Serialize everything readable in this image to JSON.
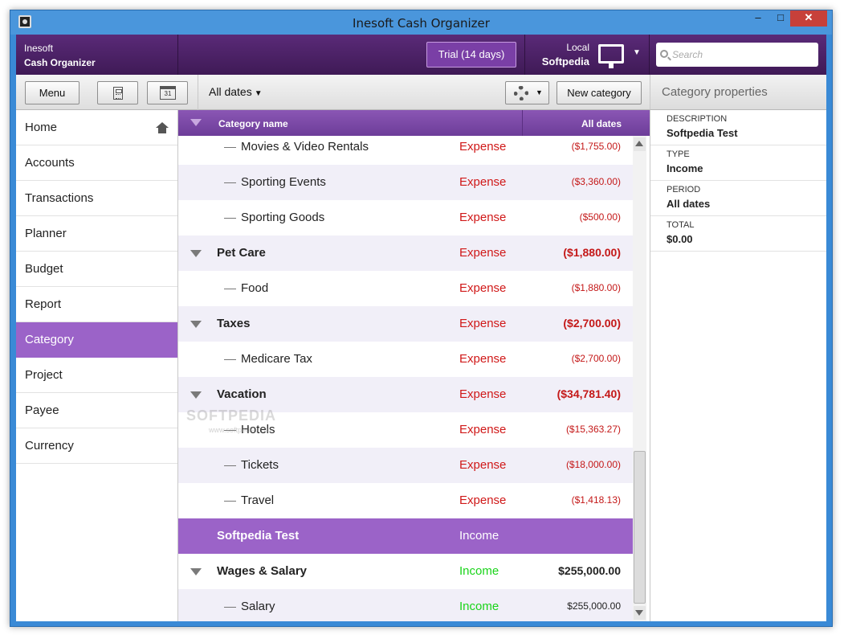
{
  "window": {
    "title": "Inesoft Cash Organizer",
    "min": "–",
    "max": "□",
    "close": "✕"
  },
  "header": {
    "brand_line1": "Inesoft",
    "brand_line2": "Cash Organizer",
    "trial": "Trial (14 days)",
    "local_label": "Local",
    "local_value": "Softpedia",
    "search_placeholder": "Search"
  },
  "toolbar": {
    "menu_label": "Menu",
    "calendar_day": "31",
    "dates_label": "All dates",
    "new_category_label": "New category"
  },
  "props_header": "Category properties",
  "sidebar": {
    "items": [
      "Home",
      "Accounts",
      "Transactions",
      "Planner",
      "Budget",
      "Report",
      "Category",
      "Project",
      "Payee",
      "Currency"
    ],
    "active": "Category"
  },
  "grid": {
    "col_name": "Category name",
    "col_amount": "All dates",
    "rows": [
      {
        "kind": "child",
        "name": "Movies & Video Rentals",
        "type": "Expense",
        "amount": "($1,755.00)"
      },
      {
        "kind": "child",
        "name": "Sporting Events",
        "type": "Expense",
        "amount": "($3,360.00)"
      },
      {
        "kind": "child",
        "name": "Sporting Goods",
        "type": "Expense",
        "amount": "($500.00)"
      },
      {
        "kind": "parent",
        "name": "Pet Care",
        "type": "Expense",
        "amount": "($1,880.00)"
      },
      {
        "kind": "child",
        "name": "Food",
        "type": "Expense",
        "amount": "($1,880.00)"
      },
      {
        "kind": "parent",
        "name": "Taxes",
        "type": "Expense",
        "amount": "($2,700.00)"
      },
      {
        "kind": "child",
        "name": "Medicare Tax",
        "type": "Expense",
        "amount": "($2,700.00)"
      },
      {
        "kind": "parent",
        "name": "Vacation",
        "type": "Expense",
        "amount": "($34,781.40)"
      },
      {
        "kind": "child",
        "name": "Hotels",
        "type": "Expense",
        "amount": "($15,363.27)"
      },
      {
        "kind": "child",
        "name": "Tickets",
        "type": "Expense",
        "amount": "($18,000.00)"
      },
      {
        "kind": "child",
        "name": "Travel",
        "type": "Expense",
        "amount": "($1,418.13)"
      },
      {
        "kind": "selected",
        "name": "Softpedia Test",
        "type": "Income",
        "amount": ""
      },
      {
        "kind": "parent",
        "name": "Wages & Salary",
        "type": "Income",
        "amount": "$255,000.00"
      },
      {
        "kind": "child",
        "name": "Salary",
        "type": "Income",
        "amount": "$255,000.00"
      }
    ]
  },
  "properties": [
    {
      "key": "DESCRIPTION",
      "value": "Softpedia Test"
    },
    {
      "key": "TYPE",
      "value": "Income"
    },
    {
      "key": "PERIOD",
      "value": "All dates"
    },
    {
      "key": "TOTAL",
      "value": "$0.00"
    }
  ],
  "watermark": {
    "main": "SOFTPEDIA",
    "sub": "www.softpedia.com"
  },
  "colors": {
    "accent": "#9b63c8",
    "header": "#4a1f64",
    "expense": "#d01818",
    "income": "#19d419"
  }
}
